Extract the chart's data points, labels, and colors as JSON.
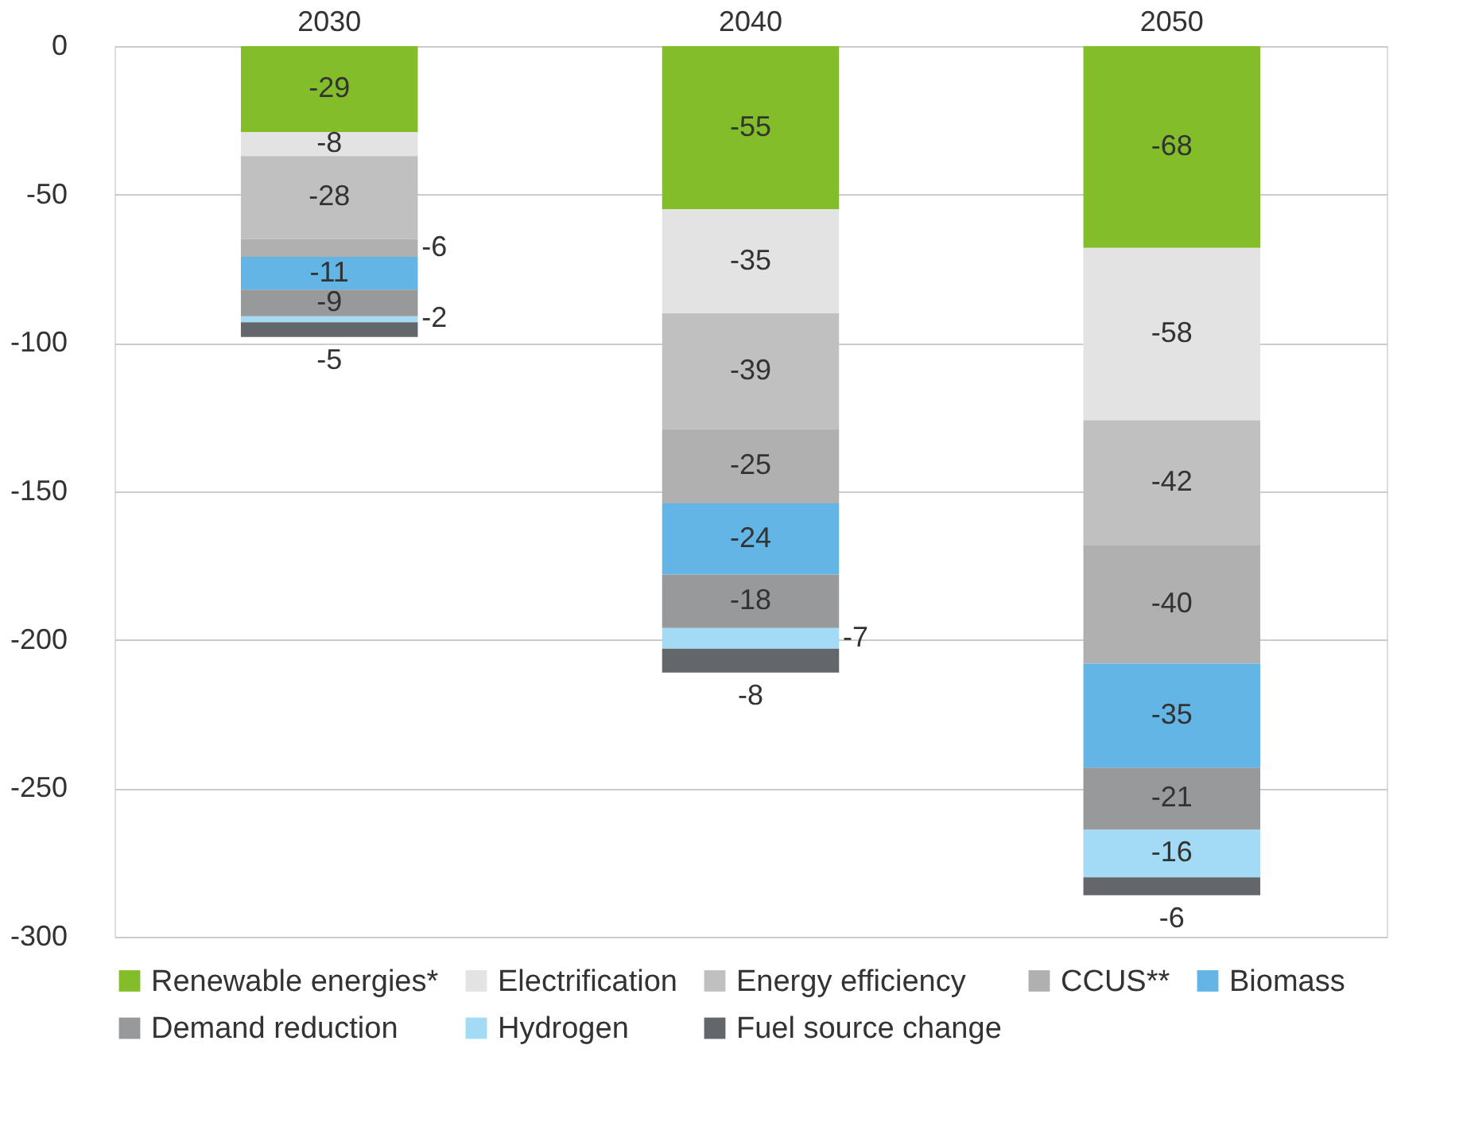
{
  "chart_data": {
    "type": "bar",
    "stacked": true,
    "categories": [
      "2030",
      "2040",
      "2050"
    ],
    "series": [
      {
        "name": "Renewable energies*",
        "color": "#84bd2a",
        "values": [
          -29,
          -55,
          -68
        ]
      },
      {
        "name": "Electrification",
        "color": "#e3e3e3",
        "values": [
          -8,
          -35,
          -58
        ]
      },
      {
        "name": "Energy efficiency",
        "color": "#c0c0c0",
        "values": [
          -28,
          -39,
          -42
        ]
      },
      {
        "name": "CCUS**",
        "color": "#b0b0b0",
        "values": [
          -6,
          -25,
          -40
        ]
      },
      {
        "name": "Biomass",
        "color": "#62b5e5",
        "values": [
          -11,
          -24,
          -35
        ]
      },
      {
        "name": "Demand reduction",
        "color": "#97999b",
        "values": [
          -9,
          -18,
          -21
        ]
      },
      {
        "name": "Hydrogen",
        "color": "#a4dbf4",
        "values": [
          -2,
          -7,
          -16
        ]
      },
      {
        "name": "Fuel source change",
        "color": "#63666a",
        "values": [
          -5,
          -8,
          -6
        ]
      }
    ],
    "ylim": [
      -300,
      0
    ],
    "yticks": [
      0,
      -50,
      -100,
      -150,
      -200,
      -250,
      -300
    ],
    "grid": "y",
    "legend": "bottom",
    "data_labels": true
  }
}
